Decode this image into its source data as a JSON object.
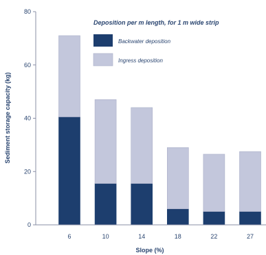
{
  "chart_data": {
    "type": "bar",
    "stacked": true,
    "categories": [
      "6",
      "10",
      "14",
      "18",
      "22",
      "27"
    ],
    "series": [
      {
        "name": "Backwater deposition",
        "values": [
          40.5,
          15.5,
          15.5,
          6,
          5,
          5
        ],
        "color": "#1d3e6e"
      },
      {
        "name": "Ingress deposition",
        "values": [
          30.5,
          31.5,
          28.5,
          23,
          21.5,
          22.5
        ],
        "color": "#c3c7dc"
      }
    ],
    "xlabel": "Slope (%)",
    "ylabel": "Sediment storage capacity (kg)",
    "ylim": [
      0,
      80
    ],
    "yticks": [
      0,
      20,
      40,
      60,
      80
    ],
    "grid": false,
    "legend": {
      "title": "Deposition per m length, for 1 m wide strip",
      "placement": "top-right"
    },
    "colors": {
      "axis": "#8a8fa6",
      "text": "#2a4570"
    }
  }
}
